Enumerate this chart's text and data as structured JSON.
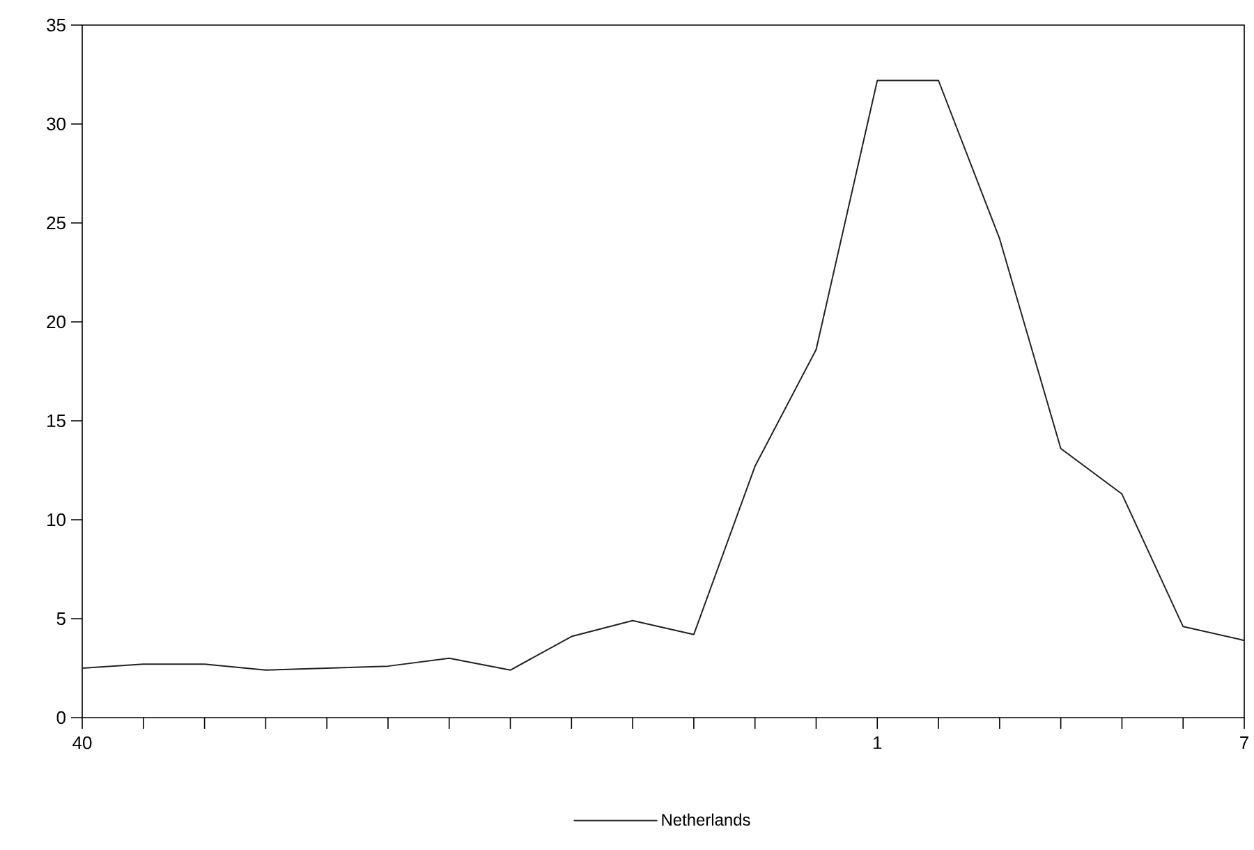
{
  "chart_data": {
    "type": "line",
    "categories": [
      "40",
      null,
      null,
      null,
      null,
      null,
      null,
      null,
      null,
      null,
      null,
      null,
      null,
      "1",
      null,
      null,
      null,
      null,
      null,
      "7"
    ],
    "series": [
      {
        "name": "Netherlands",
        "color": "#222222",
        "values": [
          2.5,
          2.7,
          2.7,
          2.4,
          2.5,
          2.6,
          3.0,
          2.4,
          4.1,
          4.9,
          4.2,
          12.7,
          18.6,
          32.2,
          32.2,
          24.2,
          13.6,
          11.3,
          4.6,
          3.9
        ]
      }
    ],
    "ylim": [
      0,
      35
    ],
    "yticks": [
      0,
      5,
      10,
      15,
      20,
      25,
      30,
      35
    ],
    "legend": "bottom",
    "grid": false
  }
}
